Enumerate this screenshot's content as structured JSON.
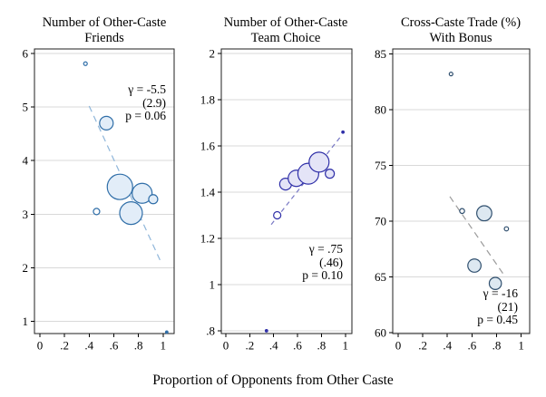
{
  "figure": {
    "xlabel": "Proportion of Opponents from Other Caste",
    "background": "#ffffff",
    "grid_color": "#d9d9d9",
    "border_color": "#1f1f1f",
    "tick_color": "#000000"
  },
  "chart_data": [
    {
      "type": "scatter",
      "title": "Number of Other-Caste Friends",
      "title_lines": [
        "Number of Other-Caste",
        "Friends"
      ],
      "xlabel": "Proportion of Opponents from Other Caste",
      "ylabel": "",
      "xlim": [
        -0.044,
        1.09
      ],
      "ylim": [
        0.772,
        6.085
      ],
      "grid": "horizontal",
      "legend": "none",
      "xticks": [
        0,
        0.2,
        0.4,
        0.6,
        0.8,
        1
      ],
      "xtick_labels": [
        "0",
        ".2",
        ".4",
        ".6",
        ".8",
        "1"
      ],
      "yticks": [
        1,
        2,
        3,
        4,
        5,
        6
      ],
      "ytick_labels": [
        "1",
        "2",
        "3",
        "4",
        "5",
        "6"
      ],
      "points": [
        {
          "x": 0.37,
          "y": 5.81,
          "r": 2,
          "style": "open"
        },
        {
          "x": 0.54,
          "y": 4.7,
          "r": 7.5,
          "style": "bubble"
        },
        {
          "x": 0.46,
          "y": 3.05,
          "r": 3.5,
          "style": "open"
        },
        {
          "x": 0.65,
          "y": 3.51,
          "r": 14,
          "style": "bubble"
        },
        {
          "x": 0.83,
          "y": 3.39,
          "r": 11,
          "style": "bubble"
        },
        {
          "x": 0.74,
          "y": 3.02,
          "r": 12.5,
          "style": "bubble"
        },
        {
          "x": 0.92,
          "y": 3.28,
          "r": 5,
          "style": "bubble"
        },
        {
          "x": 1.03,
          "y": 0.8,
          "r": 1.3,
          "style": "dot"
        }
      ],
      "trend": {
        "x1": 0.4,
        "y1": 5.02,
        "x2": 0.98,
        "y2": 2.12,
        "dash": "7 5"
      },
      "annotation_lines": [
        "γ = -5.5",
        "(2.9)",
        "p = 0.06"
      ],
      "colors": {
        "bubble_fill": "#e2edf8",
        "bubble_stroke": "#2f6ea8",
        "trend": "#8fb6da"
      }
    },
    {
      "type": "scatter",
      "title": "Number of Other-Caste Team Choice",
      "title_lines": [
        "Number of Other-Caste",
        "Team Choice"
      ],
      "xlabel": "Proportion of Opponents from Other Caste",
      "ylabel": "",
      "xlim": [
        -0.038,
        1.055
      ],
      "ylim": [
        0.788,
        2.02
      ],
      "grid": "horizontal",
      "legend": "none",
      "xticks": [
        0,
        0.2,
        0.4,
        0.6,
        0.8,
        1
      ],
      "xtick_labels": [
        "0",
        ".2",
        ".4",
        ".6",
        ".8",
        "1"
      ],
      "yticks": [
        0.8,
        1,
        1.2,
        1.4,
        1.6,
        1.8,
        2
      ],
      "ytick_labels": [
        ".8",
        "1",
        "1.2",
        "1.4",
        "1.6",
        "1.8",
        "2"
      ],
      "points": [
        {
          "x": 0.34,
          "y": 0.8,
          "r": 1.3,
          "style": "dot"
        },
        {
          "x": 0.43,
          "y": 1.3,
          "r": 4,
          "style": "open"
        },
        {
          "x": 0.5,
          "y": 1.435,
          "r": 6.5,
          "style": "bubble"
        },
        {
          "x": 0.59,
          "y": 1.46,
          "r": 9,
          "style": "bubble"
        },
        {
          "x": 0.69,
          "y": 1.48,
          "r": 11.5,
          "style": "bubble"
        },
        {
          "x": 0.78,
          "y": 1.53,
          "r": 11,
          "style": "bubble"
        },
        {
          "x": 0.87,
          "y": 1.48,
          "r": 5,
          "style": "bubble"
        },
        {
          "x": 0.98,
          "y": 1.66,
          "r": 1.3,
          "style": "dot"
        }
      ],
      "trend": {
        "x1": 0.38,
        "y1": 1.26,
        "x2": 0.96,
        "y2": 1.64,
        "dash": "5 4"
      },
      "annotation_lines": [
        "γ = .75",
        "(.46)",
        "p = 0.10"
      ],
      "colors": {
        "bubble_fill": "#e4e4f7",
        "bubble_stroke": "#2f2fa8",
        "trend": "#7777c4"
      }
    },
    {
      "type": "scatter",
      "title": "Cross-Caste Trade (%) With Bonus",
      "title_lines": [
        "Cross-Caste Trade (%)",
        "With Bonus"
      ],
      "xlabel": "Proportion of Opponents from Other Caste",
      "ylabel": "",
      "xlim": [
        -0.044,
        1.069
      ],
      "ylim": [
        59.9,
        85.45
      ],
      "grid": "horizontal",
      "legend": "none",
      "xticks": [
        0,
        0.2,
        0.4,
        0.6,
        0.8,
        1
      ],
      "xtick_labels": [
        "0",
        ".2",
        ".4",
        ".6",
        ".8",
        "1"
      ],
      "yticks": [
        60,
        65,
        70,
        75,
        80,
        85
      ],
      "ytick_labels": [
        "60",
        "65",
        "70",
        "75",
        "80",
        "85"
      ],
      "points": [
        {
          "x": 0.43,
          "y": 83.2,
          "r": 2,
          "style": "open"
        },
        {
          "x": 0.52,
          "y": 70.9,
          "r": 2.7,
          "style": "open"
        },
        {
          "x": 0.7,
          "y": 70.7,
          "r": 8.3,
          "style": "bubble"
        },
        {
          "x": 0.88,
          "y": 69.3,
          "r": 2.3,
          "style": "open"
        },
        {
          "x": 0.62,
          "y": 66.0,
          "r": 7.3,
          "style": "bubble"
        },
        {
          "x": 0.79,
          "y": 64.4,
          "r": 6.7,
          "style": "bubble"
        }
      ],
      "trend": {
        "x1": 0.42,
        "y1": 72.2,
        "x2": 0.87,
        "y2": 65.0,
        "dash": "7 5"
      },
      "annotation_lines": [
        "γ = -16",
        "(21)",
        "p = 0.45"
      ],
      "colors": {
        "bubble_fill": "#dde8f1",
        "bubble_stroke": "#2f4f6e",
        "trend": "#9c9c9c"
      }
    }
  ]
}
